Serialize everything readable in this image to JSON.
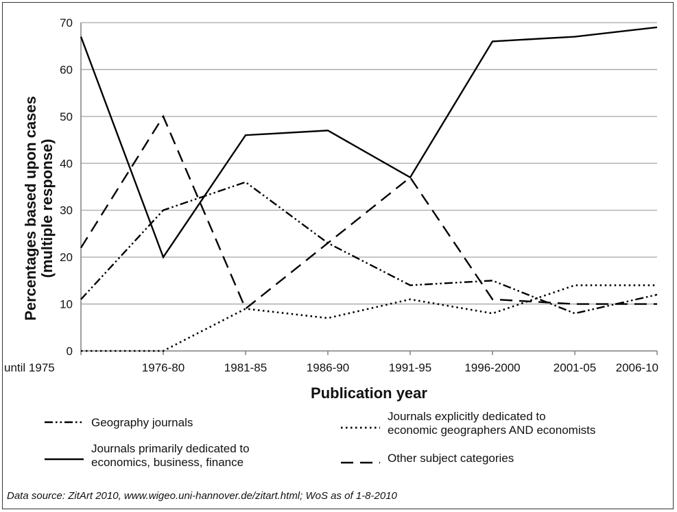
{
  "chart_data": {
    "type": "line",
    "xlabel": "Publication year",
    "ylabel": "Percentages based upon cases (multiple response)",
    "ylim": [
      0,
      70
    ],
    "yticks": [
      "0",
      "10",
      "20",
      "30",
      "40",
      "50",
      "60",
      "70"
    ],
    "grid": true,
    "legend_position": "bottom",
    "categories": [
      "until 1975",
      "1976-80",
      "1981-85",
      "1986-90",
      "1991-95",
      "1996-2000",
      "2001-05",
      "2006-10"
    ],
    "series": [
      {
        "name": "Geography journals",
        "style": "dash-dot-dot",
        "values": [
          11,
          30,
          36,
          23,
          14,
          15,
          8,
          12
        ]
      },
      {
        "name": "Journals primarily dedicated to economics, business, finance",
        "style": "solid",
        "values": [
          67,
          20,
          46,
          47,
          37,
          66,
          67,
          69
        ]
      },
      {
        "name": "Journals explicitly dedicated to economic geographers AND economists",
        "style": "dotted",
        "values": [
          0,
          0,
          9,
          7,
          11,
          8,
          14,
          14
        ]
      },
      {
        "name": "Other subject categories",
        "style": "dashed",
        "values": [
          22,
          50,
          9,
          23,
          37,
          11,
          10,
          10
        ]
      }
    ],
    "legend_lines": [
      [
        "Geography journals"
      ],
      [
        "Journals primarily dedicated to",
        "economics, business, finance"
      ],
      [
        "Journals explicitly dedicated to",
        "economic geographers AND economists"
      ],
      [
        "Other subject categories"
      ]
    ],
    "ylabel_lines": [
      "Percentages based upon cases",
      "(multiple response)"
    ],
    "source": "Data source: ZitArt 2010, www.wigeo.uni-hannover.de/zitart.html; WoS as of 1-8-2010",
    "colors": {
      "line": "#000000",
      "grid": "#a6a6a6",
      "axis": "#7f7f7f"
    }
  }
}
